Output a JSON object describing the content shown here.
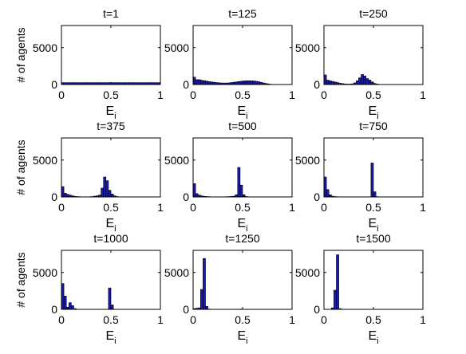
{
  "colors": {
    "bar_fill": "#1a1aa8",
    "bar_stroke": "#000000",
    "axis": "#000000",
    "background": "#ffffff"
  },
  "chart_data": [
    {
      "type": "bar",
      "title": "t=1",
      "xlabel": "E",
      "xlabel_sub": "i",
      "ylabel": "# of agents",
      "xlim": [
        0,
        1
      ],
      "ylim": [
        0,
        8000
      ],
      "xticks": [
        "0",
        "0.5",
        "1"
      ],
      "yticks": [
        "0",
        "5000"
      ],
      "bin_width": 0.025,
      "bins_x": [
        0.0125,
        0.0375,
        0.0625,
        0.0875,
        0.1125,
        0.1375,
        0.1625,
        0.1875,
        0.2125,
        0.2375,
        0.2625,
        0.2875,
        0.3125,
        0.3375,
        0.3625,
        0.3875,
        0.4125,
        0.4375,
        0.4625,
        0.4875,
        0.5125,
        0.5375,
        0.5625,
        0.5875,
        0.6125,
        0.6375,
        0.6625,
        0.6875,
        0.7125,
        0.7375,
        0.7625,
        0.7875,
        0.8125,
        0.8375,
        0.8625,
        0.8875,
        0.9125,
        0.9375,
        0.9625,
        0.9875
      ],
      "values": [
        250,
        250,
        250,
        250,
        250,
        250,
        250,
        250,
        250,
        250,
        250,
        250,
        250,
        250,
        250,
        250,
        250,
        250,
        250,
        250,
        250,
        250,
        250,
        250,
        250,
        250,
        250,
        250,
        250,
        250,
        250,
        250,
        250,
        250,
        250,
        250,
        250,
        250,
        250,
        250
      ]
    },
    {
      "type": "bar",
      "title": "t=125",
      "xlabel": "E",
      "xlabel_sub": "i",
      "ylabel": "",
      "xlim": [
        0,
        1
      ],
      "ylim": [
        0,
        8000
      ],
      "xticks": [
        "0",
        "0.5",
        "1"
      ],
      "yticks": [
        "0",
        "5000"
      ],
      "bin_width": 0.025,
      "bins_x": [
        0.0125,
        0.0375,
        0.0625,
        0.0875,
        0.1125,
        0.1375,
        0.1625,
        0.1875,
        0.2125,
        0.2375,
        0.2625,
        0.2875,
        0.3125,
        0.3375,
        0.3625,
        0.3875,
        0.4125,
        0.4375,
        0.4625,
        0.4875,
        0.5125,
        0.5375,
        0.5625,
        0.5875,
        0.6125,
        0.6375,
        0.6625,
        0.6875,
        0.7125,
        0.7375,
        0.7625,
        0.7875
      ],
      "values": [
        1000,
        650,
        650,
        580,
        520,
        460,
        400,
        340,
        300,
        260,
        230,
        210,
        200,
        200,
        220,
        260,
        300,
        350,
        400,
        440,
        480,
        500,
        510,
        500,
        480,
        440,
        380,
        300,
        210,
        140,
        80,
        30
      ]
    },
    {
      "type": "bar",
      "title": "t=250",
      "xlabel": "E",
      "xlabel_sub": "i",
      "ylabel": "",
      "xlim": [
        0,
        1
      ],
      "ylim": [
        0,
        8000
      ],
      "xticks": [
        "0",
        "0.5",
        "1"
      ],
      "yticks": [
        "0",
        "5000"
      ],
      "bin_width": 0.025,
      "bins_x": [
        0.0125,
        0.0375,
        0.0625,
        0.0875,
        0.1125,
        0.1375,
        0.1625,
        0.1875,
        0.2125,
        0.2375,
        0.2625,
        0.2875,
        0.3125,
        0.3375,
        0.3625,
        0.3875,
        0.4125,
        0.4375,
        0.4625,
        0.4875,
        0.5125,
        0.5375,
        0.5625,
        0.5875
      ],
      "values": [
        1300,
        600,
        500,
        420,
        340,
        260,
        180,
        120,
        80,
        60,
        60,
        90,
        220,
        500,
        900,
        1350,
        1150,
        800,
        600,
        350,
        150,
        60,
        20,
        10
      ]
    },
    {
      "type": "bar",
      "title": "t=375",
      "xlabel": "E",
      "xlabel_sub": "i",
      "ylabel": "# of agents",
      "xlim": [
        0,
        1
      ],
      "ylim": [
        0,
        8000
      ],
      "xticks": [
        "0",
        "0.5",
        "1"
      ],
      "yticks": [
        "0",
        "5000"
      ],
      "bin_width": 0.025,
      "bins_x": [
        0.0125,
        0.0375,
        0.0625,
        0.0875,
        0.1125,
        0.1375,
        0.1625,
        0.1875,
        0.2125,
        0.2375,
        0.2625,
        0.2875,
        0.3125,
        0.3375,
        0.3625,
        0.3875,
        0.4125,
        0.4375,
        0.4625,
        0.4875,
        0.5125,
        0.5375,
        0.5625
      ],
      "values": [
        1400,
        500,
        350,
        250,
        150,
        80,
        50,
        30,
        20,
        20,
        20,
        30,
        50,
        100,
        150,
        250,
        1200,
        2700,
        2200,
        900,
        400,
        150,
        50
      ]
    },
    {
      "type": "bar",
      "title": "t=500",
      "xlabel": "E",
      "xlabel_sub": "i",
      "ylabel": "",
      "xlim": [
        0,
        1
      ],
      "ylim": [
        0,
        8000
      ],
      "xticks": [
        "0",
        "0.5",
        "1"
      ],
      "yticks": [
        "0",
        "5000"
      ],
      "bin_width": 0.025,
      "bins_x": [
        0.0125,
        0.0375,
        0.0625,
        0.0875,
        0.1125,
        0.1375,
        0.1625,
        0.1875,
        0.2125,
        0.2375,
        0.2625,
        0.2875,
        0.3125,
        0.3375,
        0.3625,
        0.3875,
        0.4125,
        0.4375,
        0.4625,
        0.4875,
        0.5125,
        0.5375,
        0.5625
      ],
      "values": [
        1800,
        450,
        250,
        150,
        80,
        50,
        30,
        20,
        20,
        20,
        20,
        20,
        20,
        30,
        40,
        60,
        100,
        300,
        4000,
        1600,
        300,
        60,
        20
      ]
    },
    {
      "type": "bar",
      "title": "t=750",
      "xlabel": "E",
      "xlabel_sub": "i",
      "ylabel": "",
      "xlim": [
        0,
        1
      ],
      "ylim": [
        0,
        8000
      ],
      "xticks": [
        "0",
        "0.5",
        "1"
      ],
      "yticks": [
        "0",
        "5000"
      ],
      "bin_width": 0.025,
      "bins_x": [
        0.0125,
        0.0375,
        0.0625,
        0.0875,
        0.1125,
        0.1375,
        0.1625,
        0.1875,
        0.2125,
        0.2375,
        0.2625,
        0.2875,
        0.3125,
        0.3375,
        0.3625,
        0.3875,
        0.4125,
        0.4375,
        0.4625,
        0.4875,
        0.5125,
        0.5375
      ],
      "values": [
        2700,
        1000,
        300,
        100,
        50,
        30,
        20,
        10,
        10,
        10,
        10,
        10,
        10,
        10,
        10,
        10,
        10,
        10,
        20,
        4600,
        700,
        40
      ]
    },
    {
      "type": "bar",
      "title": "t=1000",
      "xlabel": "E",
      "xlabel_sub": "i",
      "ylabel": "# of agents",
      "xlim": [
        0,
        1
      ],
      "ylim": [
        0,
        8000
      ],
      "xticks": [
        "0",
        "0.5",
        "1"
      ],
      "yticks": [
        "0",
        "5000"
      ],
      "bin_width": 0.025,
      "bins_x": [
        0.0125,
        0.0375,
        0.0625,
        0.0875,
        0.1125,
        0.1375,
        0.1625,
        0.1875,
        0.2125,
        0.2375,
        0.2625,
        0.2875,
        0.3125,
        0.3375,
        0.3625,
        0.3875,
        0.4125,
        0.4375,
        0.4625,
        0.4875,
        0.5125,
        0.5375
      ],
      "values": [
        3500,
        1800,
        300,
        900,
        500,
        100,
        20,
        10,
        10,
        10,
        10,
        10,
        10,
        10,
        10,
        10,
        10,
        10,
        10,
        2900,
        600,
        30
      ]
    },
    {
      "type": "bar",
      "title": "t=1250",
      "xlabel": "E",
      "xlabel_sub": "i",
      "ylabel": "",
      "xlim": [
        0,
        1
      ],
      "ylim": [
        0,
        8000
      ],
      "xticks": [
        "0",
        "0.5",
        "1"
      ],
      "yticks": [
        "0",
        "5000"
      ],
      "bin_width": 0.025,
      "bins_x": [
        0.0125,
        0.0375,
        0.0625,
        0.0875,
        0.1125,
        0.1375,
        0.1625,
        0.4875,
        0.5125
      ],
      "values": [
        100,
        150,
        200,
        2700,
        6900,
        400,
        40,
        40,
        20
      ]
    },
    {
      "type": "bar",
      "title": "t=1500",
      "xlabel": "E",
      "xlabel_sub": "i",
      "ylabel": "",
      "xlim": [
        0,
        1
      ],
      "ylim": [
        0,
        8000
      ],
      "xticks": [
        "0",
        "0.5",
        "1"
      ],
      "yticks": [
        "0",
        "5000"
      ],
      "bin_width": 0.025,
      "bins_x": [
        0.0875,
        0.1125,
        0.1375,
        0.1625
      ],
      "values": [
        200,
        2600,
        7400,
        100
      ]
    }
  ]
}
